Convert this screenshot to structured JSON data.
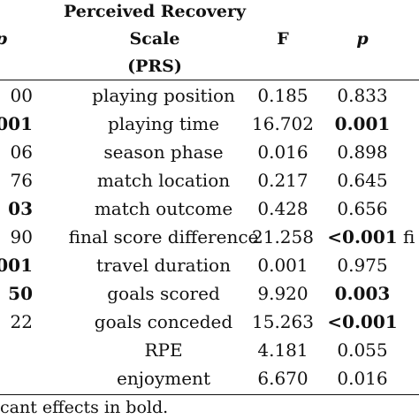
{
  "header": {
    "left_fragment": "p",
    "var_line1": "Perceived Recovery",
    "var_line2": "Scale",
    "var_line3": "(PRS)",
    "f": "F",
    "p": "p"
  },
  "rows": [
    {
      "left": "00",
      "left_bold": false,
      "var": "playing position",
      "f": "0.185",
      "p": "0.833",
      "p_bold": false,
      "right": ""
    },
    {
      "left": "001",
      "left_bold": true,
      "var": "playing time",
      "f": "16.702",
      "p": "0.001",
      "p_bold": true,
      "right": ""
    },
    {
      "left": "06",
      "left_bold": false,
      "var": "season phase",
      "f": "0.016",
      "p": "0.898",
      "p_bold": false,
      "right": ""
    },
    {
      "left": "76",
      "left_bold": false,
      "var": "match location",
      "f": "0.217",
      "p": "0.645",
      "p_bold": false,
      "right": ""
    },
    {
      "left": "03",
      "left_bold": true,
      "var": "match outcome",
      "f": "0.428",
      "p": "0.656",
      "p_bold": false,
      "right": ""
    },
    {
      "left": "90",
      "left_bold": false,
      "var": "final score difference",
      "f": "21.258",
      "p": "<0.001",
      "p_bold": true,
      "right": "fi"
    },
    {
      "left": "001",
      "left_bold": true,
      "var": "travel duration",
      "f": "0.001",
      "p": "0.975",
      "p_bold": false,
      "right": ""
    },
    {
      "left": "50",
      "left_bold": true,
      "var": "goals scored",
      "f": "9.920",
      "p": "0.003",
      "p_bold": true,
      "right": ""
    },
    {
      "left": "22",
      "left_bold": false,
      "var": "goals conceded",
      "f": "15.263",
      "p": "<0.001",
      "p_bold": true,
      "right": ""
    },
    {
      "left": "",
      "left_bold": false,
      "var": "RPE",
      "f": "4.181",
      "p": "0.055",
      "p_bold": false,
      "right": ""
    },
    {
      "left": "",
      "left_bold": false,
      "var": "enjoyment",
      "f": "6.670",
      "p": "0.016",
      "p_bold": false,
      "right": ""
    }
  ],
  "footnote": "cant effects in bold."
}
